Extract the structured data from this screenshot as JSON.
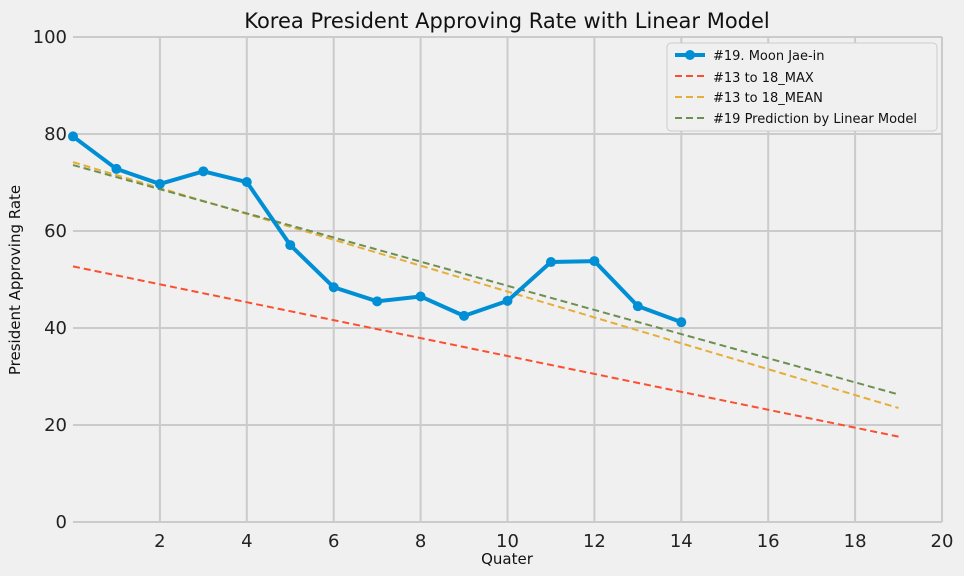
{
  "chart_data": {
    "type": "line",
    "title": "Korea President Approving Rate with Linear Model",
    "xlabel": "Quater",
    "ylabel": "President Approving Rate",
    "xlim": [
      0,
      20
    ],
    "ylim": [
      0,
      100
    ],
    "xticks": [
      2,
      4,
      6,
      8,
      10,
      12,
      14,
      16,
      18,
      20
    ],
    "yticks": [
      0,
      20,
      40,
      60,
      80,
      100
    ],
    "grid": true,
    "legend_position": "top-right",
    "series": [
      {
        "name": "#19. Moon Jae-in",
        "style": "solid-marker",
        "color": "#008fd5",
        "x": [
          0,
          1,
          2,
          3,
          4,
          5,
          6,
          7,
          8,
          9,
          10,
          11,
          12,
          13,
          14
        ],
        "y": [
          79.5,
          72.8,
          69.7,
          72.3,
          70.1,
          57.1,
          48.4,
          45.5,
          46.5,
          42.5,
          45.6,
          53.6,
          53.8,
          44.5,
          41.2
        ]
      },
      {
        "name": "#13 to 18_MAX",
        "style": "dashed",
        "color": "#fc4f30",
        "x": [
          0,
          19
        ],
        "y": [
          52.7,
          17.6
        ]
      },
      {
        "name": "#13 to 18_MEAN",
        "style": "dashed",
        "color": "#e5ae38",
        "x": [
          0,
          19
        ],
        "y": [
          74.2,
          23.5
        ]
      },
      {
        "name": "#19 Prediction by Linear Model",
        "style": "dashed",
        "color": "#6d904f",
        "x": [
          0,
          19
        ],
        "y": [
          73.6,
          26.3
        ]
      }
    ]
  }
}
